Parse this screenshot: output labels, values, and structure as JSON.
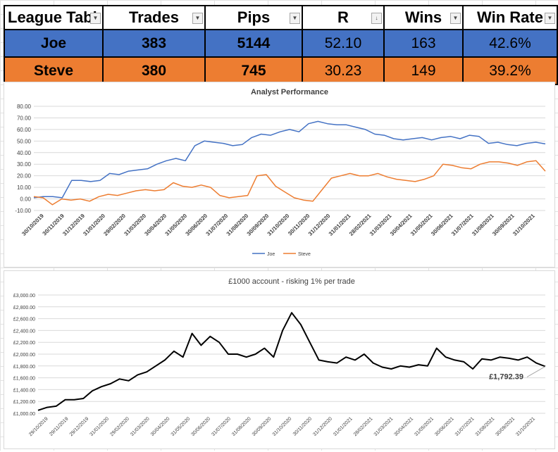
{
  "table": {
    "headers": [
      "League Tabl",
      "Trades",
      "Pips",
      "R",
      "Wins",
      "Win Rate"
    ],
    "sort_header_index": 3,
    "rows": [
      {
        "name": "Joe",
        "trades": "383",
        "pips": "5144",
        "r": "52.10",
        "wins": "163",
        "win_rate": "42.6%",
        "color": "#4472c4"
      },
      {
        "name": "Steve",
        "trades": "380",
        "pips": "745",
        "r": "30.23",
        "wins": "149",
        "win_rate": "39.2%",
        "color": "#ed7d31"
      }
    ]
  },
  "chart_data": [
    {
      "type": "line",
      "title": "Analyst Performance",
      "ylim": [
        -10,
        80
      ],
      "y_ticks": [
        "-10.00",
        "0.00",
        "10.00",
        "20.00",
        "30.00",
        "40.00",
        "50.00",
        "60.00",
        "70.00",
        "80.00"
      ],
      "x_ticks": [
        "30/10/2019",
        "30/11/2019",
        "31/12/2019",
        "31/01/2020",
        "29/02/2020",
        "31/03/2020",
        "30/04/2020",
        "31/05/2020",
        "30/06/2020",
        "31/07/2020",
        "31/08/2020",
        "30/09/2020",
        "31/10/2020",
        "30/11/2020",
        "31/12/2020",
        "31/01/2021",
        "28/02/2021",
        "31/03/2021",
        "30/04/2021",
        "31/05/2021",
        "30/06/2021",
        "31/07/2021",
        "31/08/2021",
        "30/09/2021",
        "31/10/2021"
      ],
      "grid": true,
      "legend": "bottom",
      "series": [
        {
          "name": "Joe",
          "color": "#4472c4",
          "values": [
            1,
            2,
            2,
            1,
            16,
            16,
            15,
            16,
            22,
            21,
            24,
            25,
            26,
            30,
            33,
            35,
            33,
            46,
            50,
            49,
            48,
            46,
            47,
            53,
            56,
            55,
            58,
            60,
            58,
            65,
            67,
            65,
            64,
            64,
            62,
            60,
            56,
            55,
            52,
            51,
            52,
            53,
            51,
            53,
            54,
            52,
            55,
            54,
            48,
            49,
            47,
            46,
            48,
            49,
            47.5
          ]
        },
        {
          "name": "Steve",
          "color": "#ed7d31",
          "values": [
            2,
            1,
            -5,
            0,
            -1,
            0,
            -2,
            2,
            4,
            3,
            5,
            7,
            8,
            7,
            8,
            14,
            11,
            10,
            12,
            10,
            3,
            1,
            2,
            3,
            20,
            21,
            11,
            6,
            1,
            -1,
            -2,
            8,
            18,
            20,
            22,
            20,
            20,
            22,
            19,
            17,
            16,
            15,
            17,
            20,
            30,
            29,
            27,
            26,
            30,
            32,
            32,
            31,
            29,
            32,
            33,
            24
          ]
        }
      ]
    },
    {
      "type": "line",
      "title": "£1000 account - risking 1% per trade",
      "ylim": [
        1000,
        3000
      ],
      "y_ticks": [
        "£1,000.00",
        "£1,200.00",
        "£1,400.00",
        "£1,600.00",
        "£1,800.00",
        "£2,000.00",
        "£2,200.00",
        "£2,400.00",
        "£2,600.00",
        "£2,800.00",
        "£3,000.00"
      ],
      "x_ticks": [
        "29/10/2019",
        "29/11/2019",
        "29/12/2019",
        "31/01/2020",
        "29/02/2020",
        "31/03/2020",
        "30/04/2020",
        "31/05/2020",
        "30/06/2020",
        "31/07/2020",
        "31/08/2020",
        "30/09/2020",
        "31/10/2020",
        "30/11/2020",
        "31/12/2020",
        "31/01/2021",
        "28/02/2021",
        "31/03/2021",
        "30/04/2021",
        "31/05/2021",
        "30/06/2021",
        "31/07/2021",
        "31/08/2021",
        "30/09/2021",
        "31/10/2021"
      ],
      "grid": true,
      "annotation": "£1,792.39",
      "series": [
        {
          "name": "",
          "color": "#000000",
          "values": [
            1050,
            1100,
            1120,
            1230,
            1230,
            1250,
            1380,
            1450,
            1500,
            1580,
            1550,
            1650,
            1700,
            1800,
            1900,
            2050,
            1950,
            2350,
            2150,
            2300,
            2200,
            2000,
            2000,
            1950,
            2000,
            2100,
            1950,
            2400,
            2700,
            2500,
            2200,
            1900,
            1870,
            1850,
            1950,
            1900,
            2000,
            1850,
            1780,
            1750,
            1800,
            1780,
            1820,
            1800,
            2100,
            1950,
            1900,
            1870,
            1750,
            1920,
            1900,
            1950,
            1930,
            1900,
            1950,
            1850,
            1792
          ]
        }
      ]
    }
  ]
}
